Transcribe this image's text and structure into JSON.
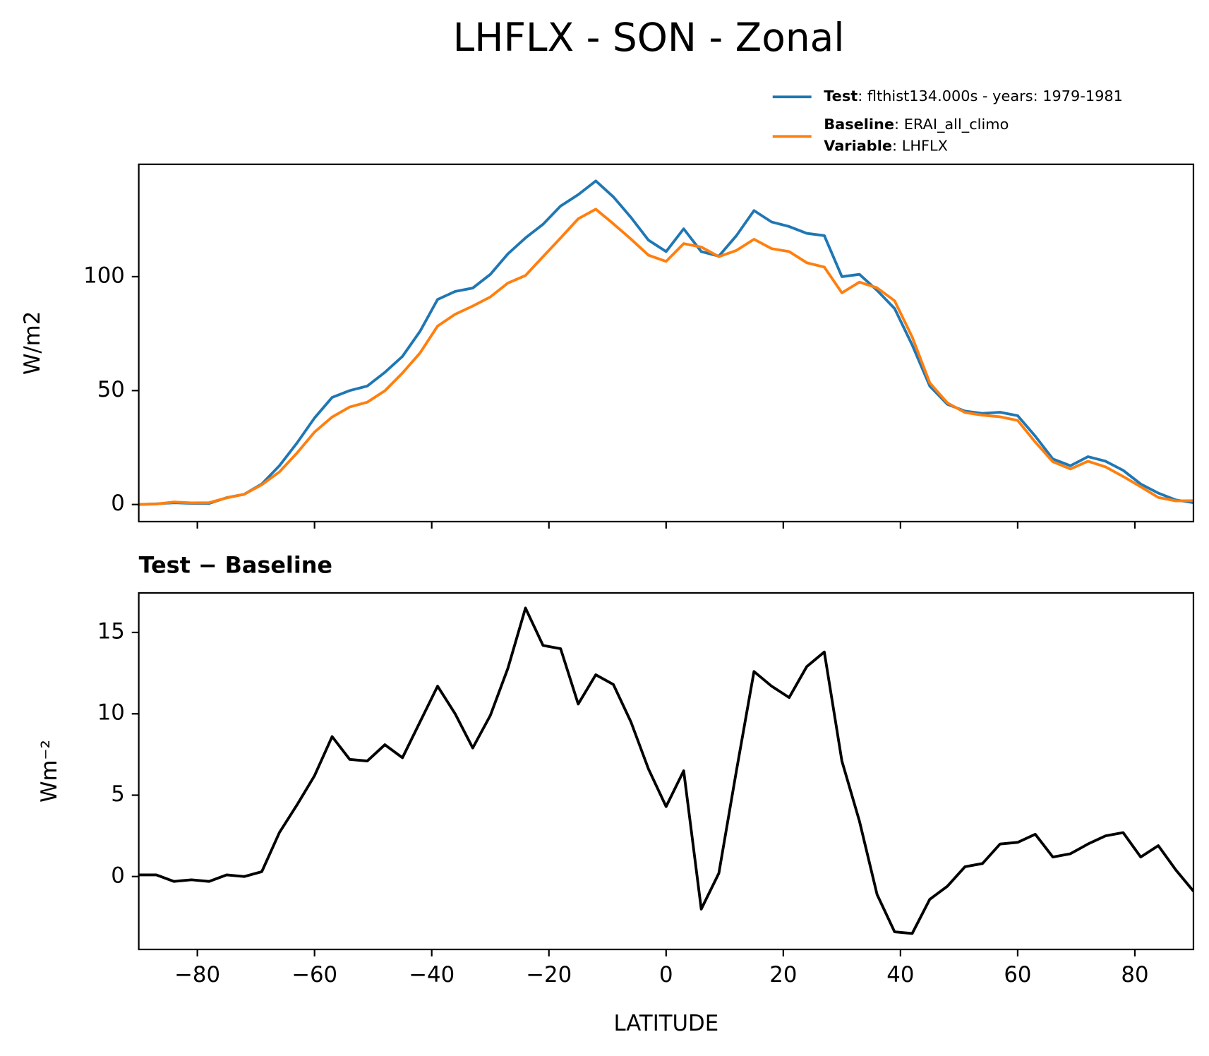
{
  "title": "LHFLX - SON - Zonal",
  "chart_data": [
    {
      "type": "line",
      "ylabel": "W/m2",
      "x": [
        -90,
        -87,
        -84,
        -81,
        -78,
        -75,
        -72,
        -69,
        -66,
        -63,
        -60,
        -57,
        -54,
        -51,
        -48,
        -45,
        -42,
        -39,
        -36,
        -33,
        -30,
        -27,
        -24,
        -21,
        -18,
        -15,
        -12,
        -9,
        -6,
        -3,
        0,
        3,
        6,
        9,
        12,
        15,
        18,
        21,
        24,
        27,
        30,
        33,
        36,
        39,
        42,
        45,
        48,
        51,
        54,
        57,
        60,
        63,
        66,
        69,
        72,
        75,
        78,
        81,
        84,
        87,
        90
      ],
      "series": [
        {
          "name": "Test",
          "text": ": flthist134.000s - years: 1979-1981",
          "color": "#1f77b4",
          "values": [
            0,
            0.3,
            0.8,
            0.5,
            0.5,
            3,
            4.5,
            9,
            17,
            27,
            38,
            47,
            50,
            52,
            58,
            65,
            76,
            90,
            93.5,
            95,
            101,
            110,
            117,
            123,
            131,
            136,
            142,
            135,
            126,
            116,
            111,
            121,
            111,
            109,
            118,
            129,
            124,
            122,
            119,
            118,
            100,
            101,
            94,
            86,
            70,
            52,
            44,
            41,
            40,
            40.5,
            39,
            30,
            20,
            17,
            21,
            19,
            15,
            9,
            5,
            2,
            0.8
          ]
        },
        {
          "name": "Baseline",
          "text": ": ERAI_all_climo",
          "name2": "Variable",
          "text2": ": LHFLX",
          "color": "#ff7f0e",
          "values": [
            0,
            0.2,
            1.1,
            0.7,
            0.8,
            2.9,
            4.5,
            8.7,
            14.3,
            22.6,
            31.8,
            38.4,
            42.8,
            44.9,
            49.9,
            57.7,
            66.5,
            78.3,
            83.5,
            87.1,
            91.1,
            97.2,
            100.5,
            108.8,
            117,
            125.4,
            129.6,
            123.2,
            116.5,
            109.4,
            106.7,
            114.5,
            113,
            108.8,
            111.5,
            116.4,
            112.3,
            111,
            106.1,
            104.2,
            92.9,
            97.6,
            95.1,
            89.4,
            73.5,
            53.4,
            44.6,
            40.4,
            39.2,
            38.5,
            36.9,
            27.4,
            18.8,
            15.6,
            19,
            16.5,
            12.3,
            7.8,
            3.1,
            1.6,
            1.7
          ]
        }
      ],
      "xlim": [
        -90,
        90
      ],
      "xticks": [
        -80,
        -60,
        -40,
        -20,
        0,
        20,
        40,
        60,
        80
      ],
      "ylim": [
        -7.5,
        149.3
      ],
      "yticks": [
        0,
        50,
        100
      ]
    },
    {
      "type": "line",
      "title": "Test − Baseline",
      "ylabel": "Wm⁻²",
      "xlabel": "LATITUDE",
      "x": [
        -90,
        -87,
        -84,
        -81,
        -78,
        -75,
        -72,
        -69,
        -66,
        -63,
        -60,
        -57,
        -54,
        -51,
        -48,
        -45,
        -42,
        -39,
        -36,
        -33,
        -30,
        -27,
        -24,
        -21,
        -18,
        -15,
        -12,
        -9,
        -6,
        -3,
        0,
        3,
        6,
        9,
        12,
        15,
        18,
        21,
        24,
        27,
        30,
        33,
        36,
        39,
        42,
        45,
        48,
        51,
        54,
        57,
        60,
        63,
        66,
        69,
        72,
        75,
        78,
        81,
        84,
        87,
        90
      ],
      "series": [
        {
          "color": "#000000",
          "values": [
            0.1,
            0.1,
            -0.3,
            -0.2,
            -0.3,
            0.1,
            0,
            0.3,
            2.7,
            4.4,
            6.2,
            8.6,
            7.2,
            7.1,
            8.1,
            7.3,
            9.5,
            11.7,
            10,
            7.9,
            9.9,
            12.8,
            16.5,
            14.2,
            14,
            10.6,
            12.4,
            11.8,
            9.5,
            6.6,
            4.3,
            6.5,
            -2,
            0.2,
            6.5,
            12.6,
            11.7,
            11,
            12.9,
            13.8,
            7.1,
            3.4,
            -1.1,
            -3.4,
            -3.5,
            -1.4,
            -0.6,
            0.6,
            0.8,
            2,
            2.1,
            2.6,
            1.2,
            1.4,
            2,
            2.5,
            2.7,
            1.2,
            1.9,
            0.4,
            -0.9
          ]
        }
      ],
      "xlim": [
        -90,
        90
      ],
      "xticks": [
        {
          "value": -80,
          "label": "−80"
        },
        {
          "value": -60,
          "label": "−60"
        },
        {
          "value": -40,
          "label": "−40"
        },
        {
          "value": -20,
          "label": "−20"
        },
        0,
        20,
        40,
        60,
        80
      ],
      "ylim": [
        -4.48,
        17.43
      ],
      "yticks": [
        0,
        5,
        10,
        15
      ]
    }
  ]
}
